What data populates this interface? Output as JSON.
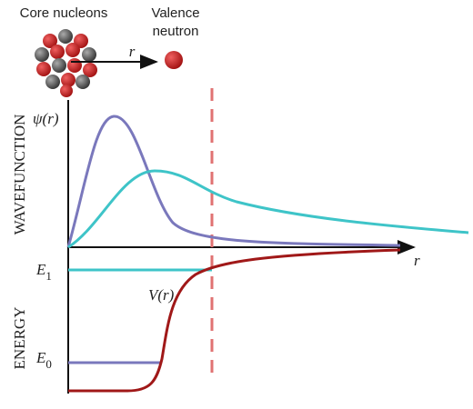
{
  "header": {
    "core_label": "Core nucleons",
    "valence_label": [
      "Valence",
      "neutron"
    ],
    "distance_label": "r"
  },
  "upper_panel": {
    "axis_title": "WAVEFUNCTION",
    "y_label": "ψ(r)",
    "x_label": "r"
  },
  "lower_panel": {
    "axis_title": "ENERGY",
    "potential_label": "V(r)",
    "levels": [
      {
        "symbol": "E",
        "subscript": "1"
      },
      {
        "symbol": "E",
        "subscript": "0"
      }
    ]
  }
}
